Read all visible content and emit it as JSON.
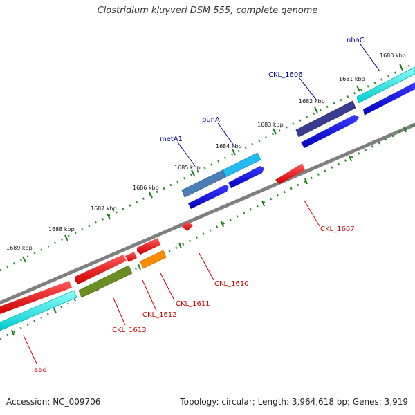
{
  "title": "Clostridium kluyveri DSM 555, complete genome",
  "footer": {
    "accession": "Accession: NC_009706",
    "stats": "Topology: circular; Length: 3,964,618 bp; Genes: 3,919"
  },
  "colors": {
    "backbone": "#7f7f7f",
    "tick": "#1a7a1a",
    "dot": "#2e8b2e",
    "plus_label": "#00008b",
    "minus_label": "#cc0000",
    "red": "#ee0000",
    "blue": "#0000dd",
    "cyan": "#00e5e5",
    "navy": "#3b3b8f",
    "steel": "#4a7fb5",
    "sky": "#22bbee",
    "olive": "#6b8e23",
    "orange": "#ff8c00"
  },
  "scale": {
    "outer_ticks": [
      "1680 kbp",
      "1681 kbp",
      "1682 kbp",
      "1683 kbp",
      "1684 kbp",
      "1685 kbp",
      "1686 kbp",
      "1687 kbp",
      "1688 kbp",
      "1689 kbp"
    ]
  },
  "gene_labels": {
    "plus": [
      "nhaC",
      "CKL_1606",
      "punA",
      "metA1"
    ],
    "minus": [
      "CKL_1607",
      "CKL_1610",
      "CKL_1611",
      "CKL_1612",
      "CKL_1613",
      "aad"
    ]
  },
  "legend_icons": [
    "forward-gene-arrow",
    "reverse-gene-arrow"
  ]
}
